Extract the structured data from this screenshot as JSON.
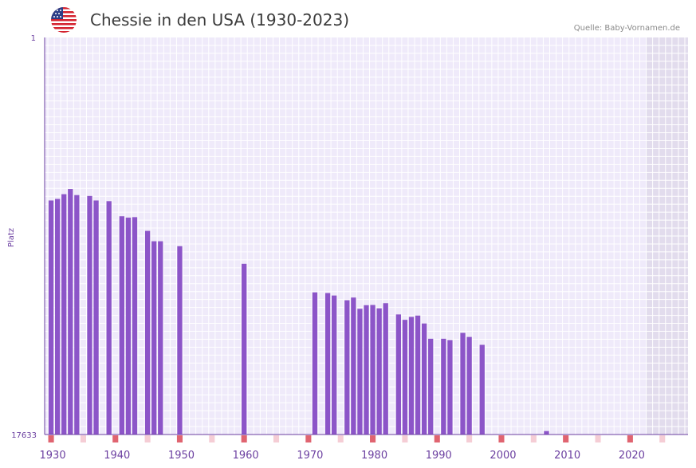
{
  "header": {
    "title": "Chessie in den USA (1930-2023)",
    "source": "Quelle: Baby-Vornamen.de",
    "flag_icon": "us-flag-icon"
  },
  "colors": {
    "bar": "#8c55c8",
    "plot_bg": "#efeafa",
    "future_bg": "#e2dced",
    "grid": "#ffffff",
    "axis": "#6b3fa0",
    "decade_marker": "#e06470",
    "halfdecade_marker": "#f5cdd5"
  },
  "chart_data": {
    "type": "bar",
    "title": "Chessie in den USA (1930-2023)",
    "ylabel": "Platz",
    "xlabel": "",
    "y_inverted": true,
    "ylim": [
      1,
      17633
    ],
    "ytick_labels": [
      "1",
      "17633"
    ],
    "xlim": [
      1929,
      2029
    ],
    "xtick_labels": [
      "1930",
      "1940",
      "1950",
      "1960",
      "1970",
      "1980",
      "1990",
      "2000",
      "2010",
      "2020"
    ],
    "x": [
      1930,
      1931,
      1932,
      1933,
      1934,
      1936,
      1937,
      1939,
      1941,
      1942,
      1943,
      1945,
      1946,
      1947,
      1950,
      1960,
      1971,
      1973,
      1974,
      1976,
      1977,
      1978,
      1979,
      1980,
      1981,
      1982,
      1984,
      1985,
      1986,
      1987,
      1988,
      1989,
      1991,
      1992,
      1994,
      1995,
      1997,
      2007
    ],
    "values": [
      7240,
      7170,
      6960,
      6730,
      7000,
      7040,
      7240,
      7270,
      7940,
      8000,
      7980,
      8590,
      9050,
      9050,
      9270,
      10050,
      11320,
      11350,
      11460,
      11670,
      11550,
      12050,
      11890,
      11880,
      12030,
      11800,
      12300,
      12540,
      12410,
      12350,
      12700,
      13380,
      13380,
      13440,
      13120,
      13300,
      13650,
      17480
    ]
  }
}
